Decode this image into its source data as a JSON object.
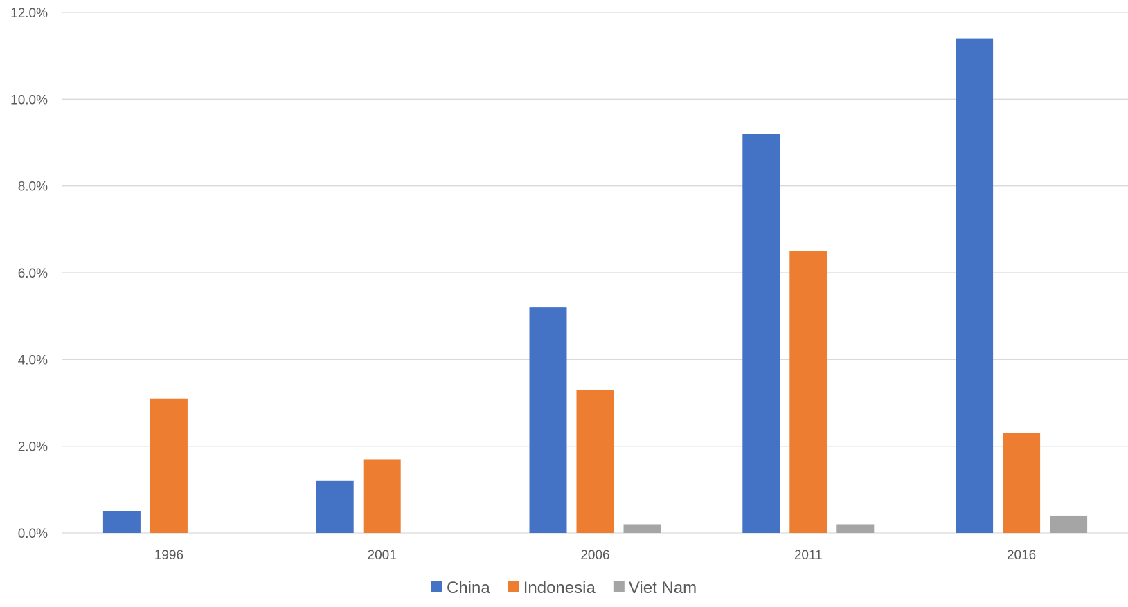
{
  "chart_data": {
    "type": "bar",
    "title": "",
    "xlabel": "",
    "ylabel": "",
    "categories": [
      "1996",
      "2001",
      "2006",
      "2011",
      "2016"
    ],
    "series": [
      {
        "name": "China",
        "color": "#4472c4",
        "values": [
          0.5,
          1.2,
          5.2,
          9.2,
          11.4
        ]
      },
      {
        "name": "Indonesia",
        "color": "#ed7d31",
        "values": [
          3.1,
          1.7,
          3.3,
          6.5,
          2.3
        ]
      },
      {
        "name": "Viet Nam",
        "color": "#a5a5a5",
        "values": [
          0.0,
          0.0,
          0.2,
          0.2,
          0.4
        ]
      }
    ],
    "ylim": [
      0,
      12
    ],
    "yticks": [
      0,
      2,
      4,
      6,
      8,
      10,
      12
    ],
    "ytick_labels": [
      "0.0%",
      "2.0%",
      "4.0%",
      "6.0%",
      "8.0%",
      "10.0%",
      "12.0%"
    ],
    "y_unit": "%",
    "grid": true,
    "legend_position": "bottom"
  }
}
